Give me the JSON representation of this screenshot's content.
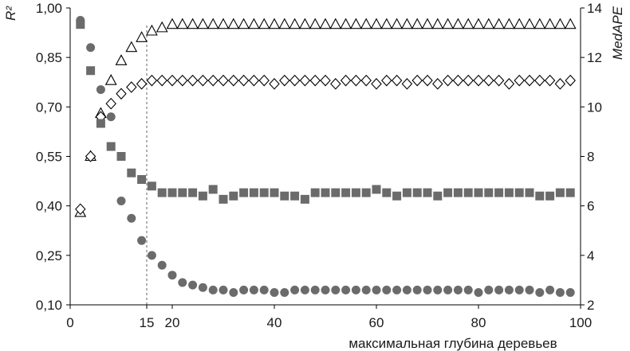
{
  "chart_data": {
    "type": "scatter",
    "xlabel": "максимальная глубина деревьев",
    "ylabel_left": "R²",
    "ylabel_right": "MedAPE",
    "xlim": [
      0,
      100
    ],
    "ylim_left": [
      0.1,
      1.0
    ],
    "ylim_right": [
      2,
      14
    ],
    "x_ticks": [
      {
        "value": 0,
        "label": "0"
      },
      {
        "value": 15,
        "label": "15"
      },
      {
        "value": 20,
        "label": "20"
      },
      {
        "value": 40,
        "label": "40"
      },
      {
        "value": 60,
        "label": "60"
      },
      {
        "value": 80,
        "label": "80"
      },
      {
        "value": 100,
        "label": "100"
      }
    ],
    "y_left_ticks": [
      {
        "value": 0.1,
        "label": "0,10"
      },
      {
        "value": 0.25,
        "label": "0,25"
      },
      {
        "value": 0.4,
        "label": "0,40"
      },
      {
        "value": 0.55,
        "label": "0,55"
      },
      {
        "value": 0.7,
        "label": "0,70"
      },
      {
        "value": 0.85,
        "label": "0,85"
      },
      {
        "value": 1.0,
        "label": "1,00"
      }
    ],
    "y_right_ticks": [
      {
        "value": 2,
        "label": "2"
      },
      {
        "value": 4,
        "label": "4"
      },
      {
        "value": 6,
        "label": "6"
      },
      {
        "value": 8,
        "label": "8"
      },
      {
        "value": 10,
        "label": "10"
      },
      {
        "value": 12,
        "label": "12"
      },
      {
        "value": 14,
        "label": "14"
      }
    ],
    "reference_line_x": 15,
    "colors": {
      "filled": "#6b6b6b",
      "outline": "#000000",
      "axis": "#000000",
      "refline": "#666666"
    },
    "series": [
      {
        "marker": "triangle",
        "axis": "left",
        "x": [
          2,
          4,
          6,
          8,
          10,
          12,
          14,
          16,
          18,
          20,
          22,
          24,
          26,
          28,
          30,
          32,
          34,
          36,
          38,
          40,
          42,
          44,
          46,
          48,
          50,
          52,
          54,
          56,
          58,
          60,
          62,
          64,
          66,
          68,
          70,
          72,
          74,
          76,
          78,
          80,
          82,
          84,
          86,
          88,
          90,
          92,
          94,
          96,
          98
        ],
        "y": [
          0.38,
          0.55,
          0.68,
          0.78,
          0.84,
          0.88,
          0.91,
          0.93,
          0.94,
          0.95,
          0.95,
          0.95,
          0.95,
          0.95,
          0.95,
          0.95,
          0.95,
          0.95,
          0.95,
          0.95,
          0.95,
          0.95,
          0.95,
          0.95,
          0.95,
          0.95,
          0.95,
          0.95,
          0.95,
          0.95,
          0.95,
          0.95,
          0.95,
          0.95,
          0.95,
          0.95,
          0.95,
          0.95,
          0.95,
          0.95,
          0.95,
          0.95,
          0.95,
          0.95,
          0.95,
          0.95,
          0.95,
          0.95,
          0.95
        ]
      },
      {
        "marker": "diamond",
        "axis": "left",
        "x": [
          2,
          4,
          6,
          8,
          10,
          12,
          14,
          16,
          18,
          20,
          22,
          24,
          26,
          28,
          30,
          32,
          34,
          36,
          38,
          40,
          42,
          44,
          46,
          48,
          50,
          52,
          54,
          56,
          58,
          60,
          62,
          64,
          66,
          68,
          70,
          72,
          74,
          76,
          78,
          80,
          82,
          84,
          86,
          88,
          90,
          92,
          94,
          96,
          98
        ],
        "y": [
          0.39,
          0.55,
          0.67,
          0.71,
          0.74,
          0.76,
          0.77,
          0.78,
          0.78,
          0.78,
          0.78,
          0.78,
          0.78,
          0.78,
          0.78,
          0.78,
          0.78,
          0.78,
          0.78,
          0.77,
          0.78,
          0.78,
          0.78,
          0.78,
          0.78,
          0.77,
          0.78,
          0.78,
          0.78,
          0.77,
          0.78,
          0.78,
          0.77,
          0.78,
          0.78,
          0.77,
          0.78,
          0.78,
          0.78,
          0.78,
          0.78,
          0.78,
          0.77,
          0.78,
          0.78,
          0.78,
          0.78,
          0.77,
          0.78
        ]
      },
      {
        "marker": "square",
        "axis": "left",
        "x": [
          2,
          4,
          6,
          8,
          10,
          12,
          14,
          16,
          18,
          20,
          22,
          24,
          26,
          28,
          30,
          32,
          34,
          36,
          38,
          40,
          42,
          44,
          46,
          48,
          50,
          52,
          54,
          56,
          58,
          60,
          62,
          64,
          66,
          68,
          70,
          72,
          74,
          76,
          78,
          80,
          82,
          84,
          86,
          88,
          90,
          92,
          94,
          96,
          98
        ],
        "y": [
          0.95,
          0.81,
          0.65,
          0.58,
          0.55,
          0.5,
          0.48,
          0.46,
          0.44,
          0.44,
          0.44,
          0.44,
          0.43,
          0.45,
          0.42,
          0.43,
          0.44,
          0.44,
          0.44,
          0.44,
          0.43,
          0.43,
          0.42,
          0.44,
          0.44,
          0.44,
          0.44,
          0.44,
          0.44,
          0.45,
          0.44,
          0.43,
          0.44,
          0.44,
          0.44,
          0.43,
          0.44,
          0.44,
          0.44,
          0.44,
          0.44,
          0.44,
          0.44,
          0.44,
          0.44,
          0.43,
          0.43,
          0.44,
          0.44
        ]
      },
      {
        "marker": "circle",
        "axis": "right",
        "x": [
          2,
          4,
          6,
          8,
          10,
          12,
          14,
          16,
          18,
          20,
          22,
          24,
          26,
          28,
          30,
          32,
          34,
          36,
          38,
          40,
          42,
          44,
          46,
          48,
          50,
          52,
          54,
          56,
          58,
          60,
          62,
          64,
          66,
          68,
          70,
          72,
          74,
          76,
          78,
          80,
          82,
          84,
          86,
          88,
          90,
          92,
          94,
          96,
          98
        ],
        "y": [
          13.5,
          12.4,
          10.7,
          9.6,
          6.2,
          5.5,
          4.6,
          4.0,
          3.6,
          3.2,
          2.9,
          2.8,
          2.7,
          2.6,
          2.6,
          2.5,
          2.6,
          2.6,
          2.6,
          2.5,
          2.5,
          2.6,
          2.6,
          2.6,
          2.6,
          2.6,
          2.6,
          2.6,
          2.6,
          2.6,
          2.6,
          2.6,
          2.6,
          2.6,
          2.6,
          2.6,
          2.6,
          2.6,
          2.6,
          2.5,
          2.6,
          2.6,
          2.6,
          2.6,
          2.6,
          2.5,
          2.6,
          2.5,
          2.5
        ]
      }
    ]
  }
}
